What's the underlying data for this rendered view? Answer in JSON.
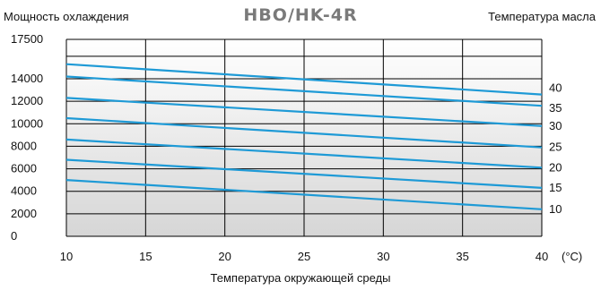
{
  "chart_data": {
    "type": "line",
    "title": "HBO/HK-4R",
    "ylabel": "Мощность охлаждения",
    "xlabel": "Температура окружающей среды",
    "right_label": "Температура масла",
    "x_unit": "(°C)",
    "xlim": [
      10,
      40
    ],
    "ylim": [
      0,
      17500
    ],
    "x_ticks": [
      10,
      15,
      20,
      25,
      30,
      35,
      40
    ],
    "y_ticks": [
      0,
      2000,
      4000,
      6000,
      8000,
      10000,
      12000,
      14000,
      17500
    ],
    "grid": true,
    "line_color": "#1e9ad6",
    "series": [
      {
        "name": "10",
        "x": [
          10,
          40
        ],
        "y": [
          5000,
          2400
        ]
      },
      {
        "name": "15",
        "x": [
          10,
          40
        ],
        "y": [
          6800,
          4300
        ]
      },
      {
        "name": "20",
        "x": [
          10,
          40
        ],
        "y": [
          8600,
          6100
        ]
      },
      {
        "name": "25",
        "x": [
          10,
          40
        ],
        "y": [
          10500,
          7900
        ]
      },
      {
        "name": "30",
        "x": [
          10,
          40
        ],
        "y": [
          12300,
          9800
        ]
      },
      {
        "name": "35",
        "x": [
          10,
          40
        ],
        "y": [
          14200,
          11600
        ]
      },
      {
        "name": "40",
        "x": [
          10,
          40
        ],
        "y": [
          15300,
          12600
        ]
      }
    ]
  }
}
